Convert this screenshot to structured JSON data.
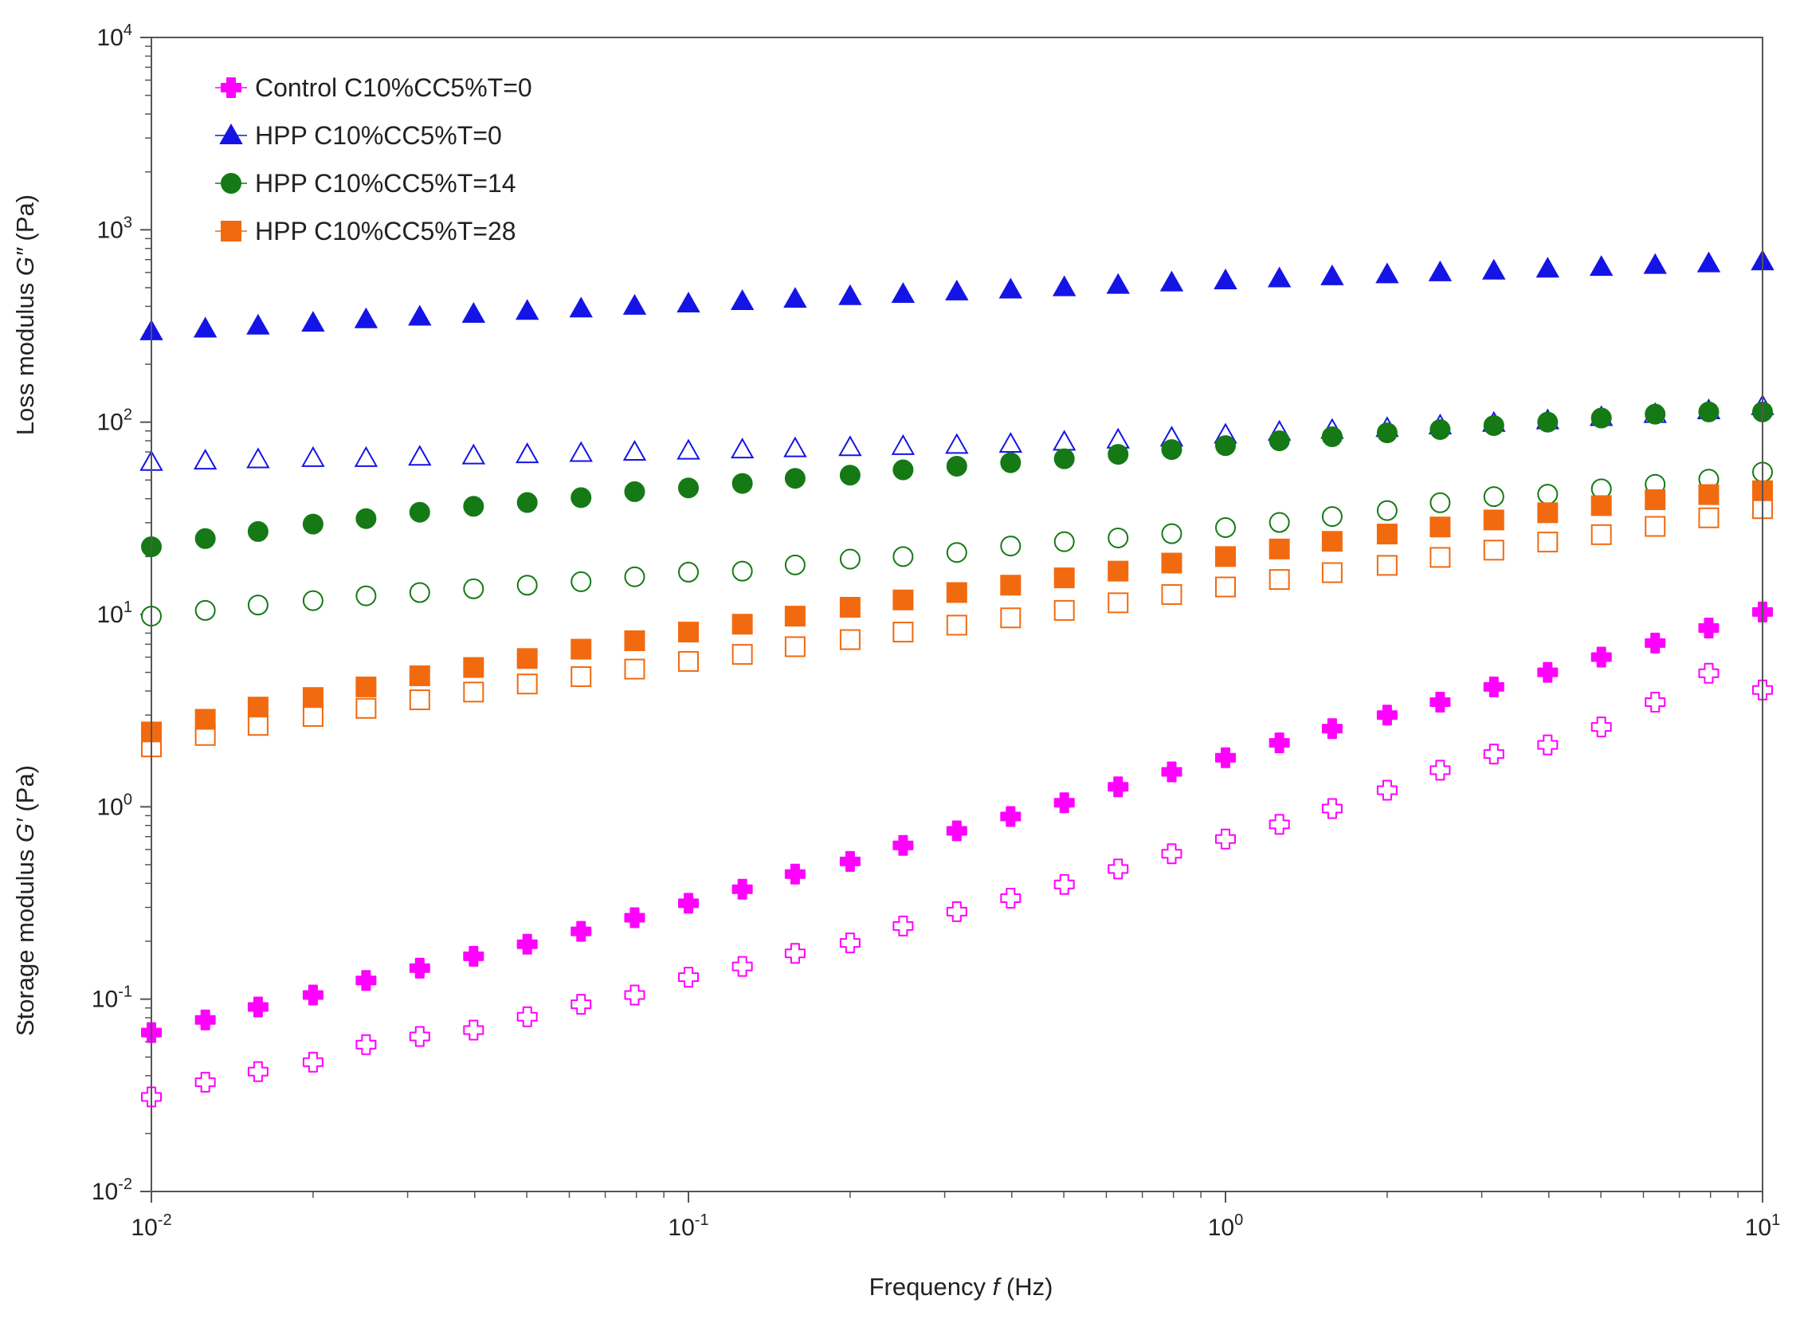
{
  "chart_data": {
    "type": "scatter",
    "title": "",
    "x_scale": "log",
    "y_scale": "log",
    "xlim": [
      0.01,
      10
    ],
    "ylim": [
      0.01,
      10000
    ],
    "xlabel": {
      "pre": "Frequency ",
      "sym": "f",
      "post": " (Hz)"
    },
    "ylabel_upper": {
      "pre": "Loss modulus ",
      "sym": "G″",
      "post": " (Pa)"
    },
    "ylabel_lower": {
      "pre": "Storage modulus ",
      "sym": "G′",
      "post": " (Pa)"
    },
    "x_ticks": [
      {
        "value": 0.01,
        "base": "10",
        "exp": "-2"
      },
      {
        "value": 0.1,
        "base": "10",
        "exp": "-1"
      },
      {
        "value": 1,
        "base": "10",
        "exp": "0"
      },
      {
        "value": 10,
        "base": "10",
        "exp": "1"
      }
    ],
    "y_ticks": [
      {
        "value": 0.01,
        "base": "10",
        "exp": "-2"
      },
      {
        "value": 0.1,
        "base": "10",
        "exp": "-1"
      },
      {
        "value": 1,
        "base": "10",
        "exp": "0"
      },
      {
        "value": 10,
        "base": "10",
        "exp": "1"
      },
      {
        "value": 100,
        "base": "10",
        "exp": "2"
      },
      {
        "value": 1000,
        "base": "10",
        "exp": "3"
      },
      {
        "value": 10000,
        "base": "10",
        "exp": "4"
      }
    ],
    "legend_position": "top-left",
    "x": [
      0.01,
      0.0126,
      0.0158,
      0.02,
      0.0251,
      0.0316,
      0.0398,
      0.0501,
      0.0631,
      0.0794,
      0.1,
      0.126,
      0.158,
      0.2,
      0.251,
      0.316,
      0.398,
      0.501,
      0.631,
      0.794,
      1,
      1.26,
      1.58,
      2,
      2.51,
      3.16,
      3.98,
      5.01,
      6.31,
      7.94,
      10
    ],
    "series": [
      {
        "name": "Control C10%CC5%T=0",
        "marker": "cross",
        "color": "#ff00ff",
        "in_legend": true,
        "loss_modulus": [
          0.067,
          0.078,
          0.091,
          0.105,
          0.125,
          0.145,
          0.167,
          0.193,
          0.225,
          0.265,
          0.315,
          0.373,
          0.447,
          0.52,
          0.63,
          0.75,
          0.89,
          1.05,
          1.27,
          1.52,
          1.8,
          2.15,
          2.55,
          3.0,
          3.5,
          4.2,
          5.0,
          6.0,
          7.1,
          8.5,
          10.3
        ],
        "storage_modulus": [
          0.031,
          0.037,
          0.042,
          0.047,
          0.058,
          0.064,
          0.069,
          0.081,
          0.094,
          0.105,
          0.13,
          0.148,
          0.173,
          0.196,
          0.24,
          0.285,
          0.335,
          0.395,
          0.475,
          0.57,
          0.68,
          0.81,
          0.98,
          1.22,
          1.55,
          1.88,
          2.1,
          2.6,
          3.5,
          4.95,
          4.05
        ]
      },
      {
        "name": "HPP C10%CC5%T=0",
        "marker": "triangle",
        "color": "#1414e6",
        "in_legend": true,
        "loss_modulus": [
          296,
          306,
          317,
          328,
          342,
          353,
          365,
          378,
          389,
          402,
          413,
          425,
          437,
          451,
          463,
          477,
          488,
          502,
          516,
          531,
          545,
          558,
          572,
          586,
          600,
          612,
          627,
          640,
          655,
          668,
          684
        ],
        "storage_modulus": [
          62,
          63,
          64,
          65,
          65,
          66,
          67,
          68,
          69,
          70,
          71,
          72,
          73,
          74,
          75,
          76,
          77,
          79,
          81,
          83,
          86,
          89,
          91,
          93,
          96,
          99,
          102,
          106,
          110,
          115,
          121
        ]
      },
      {
        "name": "HPP C10%CC5%T=14",
        "marker": "circle",
        "color": "#157a15",
        "in_legend": true,
        "loss_modulus": [
          22.5,
          24.8,
          27.0,
          29.5,
          31.5,
          34.0,
          36.5,
          38.2,
          40.5,
          43.5,
          45.5,
          48.0,
          51.0,
          53.0,
          56.5,
          59.0,
          61.5,
          64.5,
          68.0,
          72.0,
          75.5,
          80.0,
          84.0,
          88.0,
          91.5,
          96.0,
          100.0,
          105.0,
          110.0,
          113.0,
          113.0
        ],
        "storage_modulus": [
          9.8,
          10.5,
          11.2,
          11.8,
          12.5,
          13.0,
          13.6,
          14.2,
          14.8,
          15.7,
          16.6,
          16.8,
          18.1,
          19.4,
          20.0,
          21.0,
          22.7,
          23.9,
          25.0,
          26.3,
          28.3,
          30.1,
          32.3,
          34.7,
          38.1,
          41.0,
          42.2,
          45.0,
          47.5,
          50.5,
          55.0
        ]
      },
      {
        "name": "HPP C10%CC5%T=28",
        "marker": "square",
        "color": "#f26a0f",
        "in_legend": true,
        "loss_modulus": [
          2.45,
          2.85,
          3.3,
          3.7,
          4.2,
          4.8,
          5.3,
          5.9,
          6.6,
          7.3,
          8.1,
          8.9,
          9.8,
          10.9,
          11.9,
          13.0,
          14.2,
          15.5,
          16.8,
          18.5,
          20.0,
          21.9,
          24.0,
          26.2,
          28.5,
          31.0,
          33.8,
          36.8,
          39.5,
          42.0,
          44.0
        ],
        "storage_modulus": [
          2.05,
          2.35,
          2.65,
          2.95,
          3.25,
          3.6,
          3.95,
          4.35,
          4.75,
          5.2,
          5.7,
          6.2,
          6.8,
          7.4,
          8.1,
          8.8,
          9.6,
          10.5,
          11.5,
          12.7,
          13.9,
          15.2,
          16.5,
          18.0,
          19.8,
          21.6,
          23.8,
          26.0,
          28.7,
          31.8,
          35.5
        ]
      }
    ]
  }
}
